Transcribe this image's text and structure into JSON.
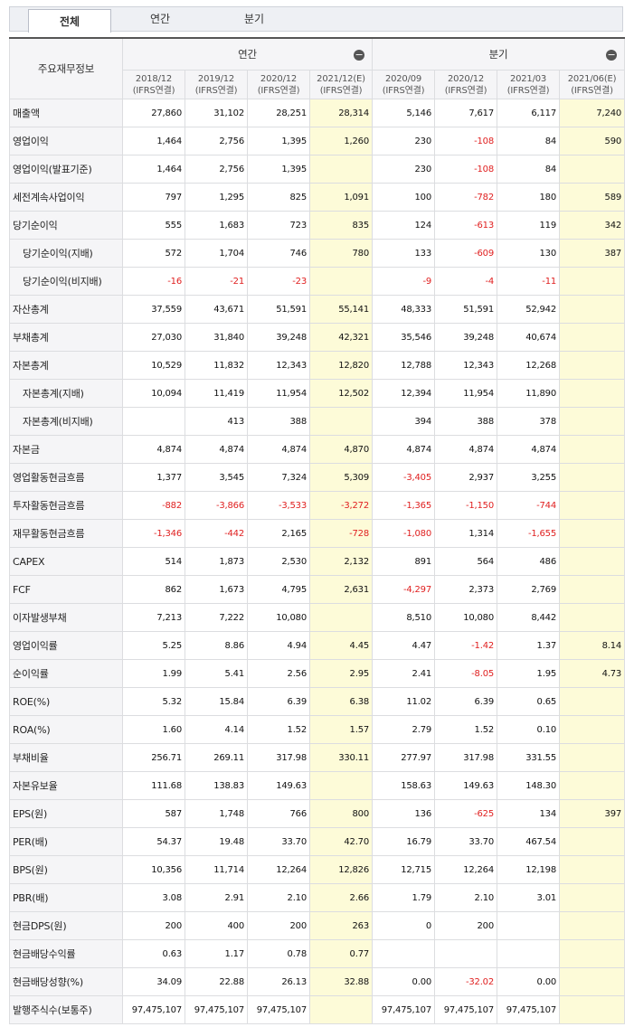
{
  "tabs": [
    "전체",
    "연간",
    "분기"
  ],
  "header": {
    "corner": "주요재무정보",
    "annual_label": "연간",
    "quarter_label": "분기",
    "collapse_glyph": "−",
    "columns": [
      {
        "period": "2018/12",
        "basis": "(IFRS연결)",
        "estimate": false
      },
      {
        "period": "2019/12",
        "basis": "(IFRS연결)",
        "estimate": false
      },
      {
        "period": "2020/12",
        "basis": "(IFRS연결)",
        "estimate": false
      },
      {
        "period": "2021/12(E)",
        "basis": "(IFRS연결)",
        "estimate": true
      },
      {
        "period": "2020/09",
        "basis": "(IFRS연결)",
        "estimate": false
      },
      {
        "period": "2020/12",
        "basis": "(IFRS연결)",
        "estimate": false
      },
      {
        "period": "2021/03",
        "basis": "(IFRS연결)",
        "estimate": false
      },
      {
        "period": "2021/06(E)",
        "basis": "(IFRS연결)",
        "estimate": true
      }
    ]
  },
  "rows": [
    {
      "label": "매출액",
      "sub": false,
      "values": [
        "27,860",
        "31,102",
        "28,251",
        "28,314",
        "5,146",
        "7,617",
        "6,117",
        "7,240"
      ]
    },
    {
      "label": "영업이익",
      "sub": false,
      "values": [
        "1,464",
        "2,756",
        "1,395",
        "1,260",
        "230",
        "-108",
        "84",
        "590"
      ]
    },
    {
      "label": "영업이익(발표기준)",
      "sub": false,
      "values": [
        "1,464",
        "2,756",
        "1,395",
        "",
        "230",
        "-108",
        "84",
        ""
      ]
    },
    {
      "label": "세전계속사업이익",
      "sub": false,
      "values": [
        "797",
        "1,295",
        "825",
        "1,091",
        "100",
        "-782",
        "180",
        "589"
      ]
    },
    {
      "label": "당기순이익",
      "sub": false,
      "values": [
        "555",
        "1,683",
        "723",
        "835",
        "124",
        "-613",
        "119",
        "342"
      ]
    },
    {
      "label": "당기순이익(지배)",
      "sub": true,
      "values": [
        "572",
        "1,704",
        "746",
        "780",
        "133",
        "-609",
        "130",
        "387"
      ]
    },
    {
      "label": "당기순이익(비지배)",
      "sub": true,
      "values": [
        "-16",
        "-21",
        "-23",
        "",
        "-9",
        "-4",
        "-11",
        ""
      ]
    },
    {
      "label": "자산총계",
      "sub": false,
      "values": [
        "37,559",
        "43,671",
        "51,591",
        "55,141",
        "48,333",
        "51,591",
        "52,942",
        ""
      ]
    },
    {
      "label": "부채총계",
      "sub": false,
      "values": [
        "27,030",
        "31,840",
        "39,248",
        "42,321",
        "35,546",
        "39,248",
        "40,674",
        ""
      ]
    },
    {
      "label": "자본총계",
      "sub": false,
      "values": [
        "10,529",
        "11,832",
        "12,343",
        "12,820",
        "12,788",
        "12,343",
        "12,268",
        ""
      ]
    },
    {
      "label": "자본총계(지배)",
      "sub": true,
      "values": [
        "10,094",
        "11,419",
        "11,954",
        "12,502",
        "12,394",
        "11,954",
        "11,890",
        ""
      ]
    },
    {
      "label": "자본총계(비지배)",
      "sub": true,
      "values": [
        "",
        "413",
        "388",
        "",
        "394",
        "388",
        "378",
        ""
      ]
    },
    {
      "label": "자본금",
      "sub": false,
      "values": [
        "4,874",
        "4,874",
        "4,874",
        "4,870",
        "4,874",
        "4,874",
        "4,874",
        ""
      ]
    },
    {
      "label": "영업활동현금흐름",
      "sub": false,
      "values": [
        "1,377",
        "3,545",
        "7,324",
        "5,309",
        "-3,405",
        "2,937",
        "3,255",
        ""
      ]
    },
    {
      "label": "투자활동현금흐름",
      "sub": false,
      "values": [
        "-882",
        "-3,866",
        "-3,533",
        "-3,272",
        "-1,365",
        "-1,150",
        "-744",
        ""
      ]
    },
    {
      "label": "재무활동현금흐름",
      "sub": false,
      "values": [
        "-1,346",
        "-442",
        "2,165",
        "-728",
        "-1,080",
        "1,314",
        "-1,655",
        ""
      ]
    },
    {
      "label": "CAPEX",
      "sub": false,
      "values": [
        "514",
        "1,873",
        "2,530",
        "2,132",
        "891",
        "564",
        "486",
        ""
      ]
    },
    {
      "label": "FCF",
      "sub": false,
      "values": [
        "862",
        "1,673",
        "4,795",
        "2,631",
        "-4,297",
        "2,373",
        "2,769",
        ""
      ]
    },
    {
      "label": "이자발생부채",
      "sub": false,
      "values": [
        "7,213",
        "7,222",
        "10,080",
        "",
        "8,510",
        "10,080",
        "8,442",
        ""
      ]
    },
    {
      "label": "영업이익률",
      "sub": false,
      "values": [
        "5.25",
        "8.86",
        "4.94",
        "4.45",
        "4.47",
        "-1.42",
        "1.37",
        "8.14"
      ]
    },
    {
      "label": "순이익률",
      "sub": false,
      "values": [
        "1.99",
        "5.41",
        "2.56",
        "2.95",
        "2.41",
        "-8.05",
        "1.95",
        "4.73"
      ]
    },
    {
      "label": "ROE(%)",
      "sub": false,
      "values": [
        "5.32",
        "15.84",
        "6.39",
        "6.38",
        "11.02",
        "6.39",
        "0.65",
        ""
      ]
    },
    {
      "label": "ROA(%)",
      "sub": false,
      "values": [
        "1.60",
        "4.14",
        "1.52",
        "1.57",
        "2.79",
        "1.52",
        "0.10",
        ""
      ]
    },
    {
      "label": "부채비율",
      "sub": false,
      "values": [
        "256.71",
        "269.11",
        "317.98",
        "330.11",
        "277.97",
        "317.98",
        "331.55",
        ""
      ]
    },
    {
      "label": "자본유보율",
      "sub": false,
      "values": [
        "111.68",
        "138.83",
        "149.63",
        "",
        "158.63",
        "149.63",
        "148.30",
        ""
      ]
    },
    {
      "label": "EPS(원)",
      "sub": false,
      "values": [
        "587",
        "1,748",
        "766",
        "800",
        "136",
        "-625",
        "134",
        "397"
      ]
    },
    {
      "label": "PER(배)",
      "sub": false,
      "values": [
        "54.37",
        "19.48",
        "33.70",
        "42.70",
        "16.79",
        "33.70",
        "467.54",
        ""
      ]
    },
    {
      "label": "BPS(원)",
      "sub": false,
      "values": [
        "10,356",
        "11,714",
        "12,264",
        "12,826",
        "12,715",
        "12,264",
        "12,198",
        ""
      ]
    },
    {
      "label": "PBR(배)",
      "sub": false,
      "values": [
        "3.08",
        "2.91",
        "2.10",
        "2.66",
        "1.79",
        "2.10",
        "3.01",
        ""
      ]
    },
    {
      "label": "현금DPS(원)",
      "sub": false,
      "values": [
        "200",
        "400",
        "200",
        "263",
        "0",
        "200",
        "",
        ""
      ]
    },
    {
      "label": "현금배당수익률",
      "sub": false,
      "values": [
        "0.63",
        "1.17",
        "0.78",
        "0.77",
        "",
        "",
        "",
        ""
      ]
    },
    {
      "label": "현금배당성향(%)",
      "sub": false,
      "values": [
        "34.09",
        "22.88",
        "26.13",
        "32.88",
        "0.00",
        "-32.02",
        "0.00",
        ""
      ]
    },
    {
      "label": "발행주식수(보통주)",
      "sub": false,
      "values": [
        "97,475,107",
        "97,475,107",
        "97,475,107",
        "",
        "97,475,107",
        "97,475,107",
        "97,475,107",
        ""
      ]
    }
  ]
}
